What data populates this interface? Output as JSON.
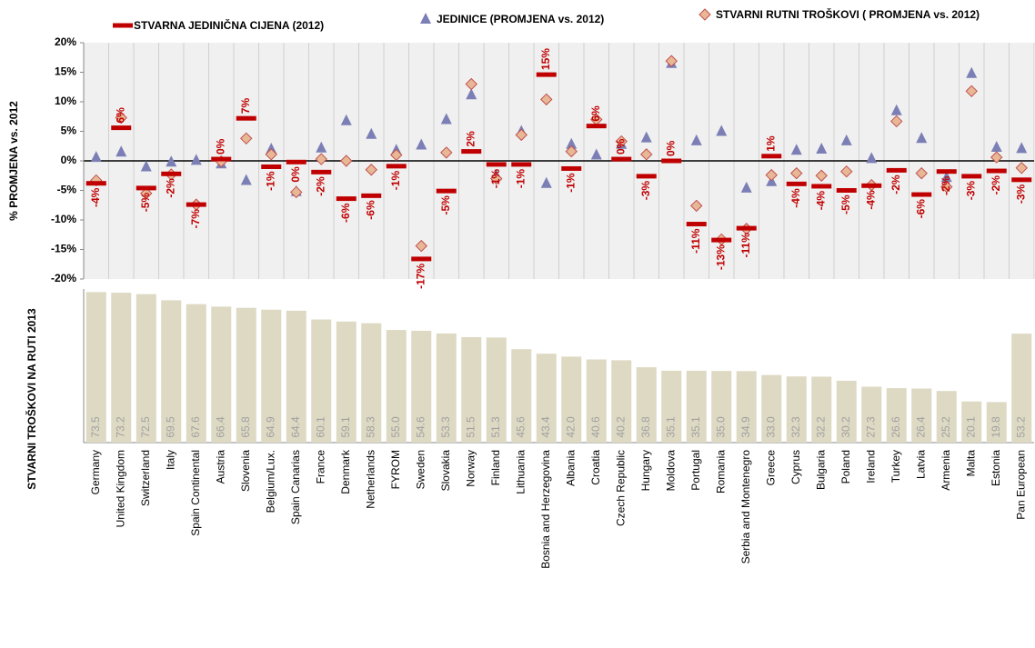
{
  "chart_data": [
    {
      "type": "scatter",
      "ylabel": "%  PROMJENA vs. 2012",
      "ylim": [
        -20,
        20
      ],
      "yticks": [
        {
          "value": -20,
          "label": "-20%"
        },
        {
          "value": -15,
          "label": "-15%"
        },
        {
          "value": -10,
          "label": "-10%"
        },
        {
          "value": -5,
          "label": "-5%"
        },
        {
          "value": 0,
          "label": "0%"
        },
        {
          "value": 5,
          "label": "5%"
        },
        {
          "value": 10,
          "label": "10%"
        },
        {
          "value": 15,
          "label": "15%"
        },
        {
          "value": 20,
          "label": "20%"
        }
      ],
      "series": [
        {
          "name": "STVARNA JEDINIČNA CIJENA (2012)",
          "marker": "dash",
          "color": "#c00000",
          "values": [
            -3.8,
            5.6,
            -4.6,
            -2.2,
            -7.4,
            0.3,
            7.2,
            -1.0,
            -0.2,
            -1.9,
            -6.4,
            -5.9,
            -0.9,
            -16.6,
            -5.1,
            1.6,
            -0.6,
            -0.6,
            14.6,
            -1.3,
            5.9,
            0.3,
            -2.6,
            0.0,
            -10.7,
            -13.4,
            -11.4,
            0.8,
            -3.9,
            -4.3,
            -5.0,
            -4.2,
            -1.6,
            -5.7,
            -1.8,
            -2.6,
            -1.7,
            -3.2
          ],
          "value_labels": [
            "-4%",
            "6%",
            "-5%",
            "-2%",
            "-7%",
            "0%",
            "7%",
            "-1%",
            "0%",
            "-2%",
            "-6%",
            "-6%",
            "-1%",
            "-17%",
            "-5%",
            "2%",
            "-1%",
            "-1%",
            "15%",
            "-1%",
            "6%",
            "0%",
            "-3%",
            "0%",
            "-11%",
            "-13%",
            "-11%",
            "1%",
            "-4%",
            "-4%",
            "-5%",
            "-4%",
            "-2%",
            "-6%",
            "-2%",
            "-3%",
            "-2%",
            "-3%"
          ]
        },
        {
          "name": "JEDINICE (PROMJENA vs. 2012)",
          "marker": "triangle",
          "color": "#7b7fb5",
          "values": [
            0.6,
            1.5,
            -1.0,
            -0.2,
            0.1,
            -0.5,
            -3.3,
            2.0,
            -5.2,
            2.2,
            6.8,
            4.5,
            1.8,
            2.7,
            7.0,
            11.2,
            -2.5,
            5.0,
            -3.8,
            2.8,
            1.0,
            2.8,
            3.9,
            16.5,
            3.4,
            5.0,
            -4.6,
            -3.5,
            1.8,
            2.0,
            3.4,
            0.4,
            8.5,
            3.8,
            -2.8,
            14.8,
            2.3,
            2.1
          ]
        },
        {
          "name": "STVARNI RUTNI TROŠKOVI ( PROMJENA vs. 2012)",
          "marker": "diamond",
          "color": "#e8b896",
          "values": [
            -3.3,
            7.3,
            -5.5,
            -2.3,
            -7.4,
            -0.1,
            3.8,
            1.1,
            -5.3,
            0.3,
            0.0,
            -1.5,
            1.0,
            -14.4,
            1.4,
            13.0,
            -3.0,
            4.4,
            10.4,
            1.6,
            7.0,
            3.3,
            1.1,
            16.9,
            -7.6,
            -13.3,
            -11.5,
            -2.4,
            -2.1,
            -2.5,
            -1.8,
            -4.1,
            6.7,
            -2.1,
            -4.4,
            11.8,
            0.6,
            -1.2
          ]
        }
      ]
    },
    {
      "type": "bar",
      "ylabel": "STVARNI TROŠKOVI NA RUTI 2013",
      "color": "#ddd9c3",
      "ylim": [
        0,
        75
      ],
      "categories": [
        "Germany",
        "United Kingdom",
        "Switzerland",
        "Italy",
        "Spain Continental",
        "Austria",
        "Slovenia",
        "Belgium/Lux.",
        "Spain Canarias",
        "France",
        "Denmark",
        "Netherlands",
        "FYROM",
        "Sweden",
        "Slovakia",
        "Norway",
        "Finland",
        "Lithuania",
        "Bosnia and Herzegovina",
        "Albania",
        "Croatia",
        "Czech Republic",
        "Hungary",
        "Moldova",
        "Portugal",
        "Romania",
        "Serbia and Montenegro",
        "Greece",
        "Cyprus",
        "Bulgaria",
        "Poland",
        "Ireland",
        "Turkey",
        "Latvia",
        "Armenia",
        "Malta",
        "Estonia",
        "Pan European"
      ],
      "values": [
        73.5,
        73.2,
        72.5,
        69.5,
        67.6,
        66.4,
        65.8,
        64.9,
        64.4,
        60.1,
        59.1,
        58.3,
        55.0,
        54.6,
        53.3,
        51.5,
        51.3,
        45.6,
        43.4,
        42.0,
        40.6,
        40.2,
        36.8,
        35.1,
        35.1,
        35.0,
        34.9,
        33.0,
        32.3,
        32.2,
        30.2,
        27.3,
        26.6,
        26.4,
        25.2,
        20.1,
        19.8,
        53.2
      ],
      "value_labels": [
        "73.5",
        "73.2",
        "72.5",
        "69.5",
        "67.6",
        "66.4",
        "65.8",
        "64.9",
        "64.4",
        "60.1",
        "59.1",
        "58.3",
        "55.0",
        "54.6",
        "53.3",
        "51.5",
        "51.3",
        "45.6",
        "43.4",
        "42.0",
        "40.6",
        "40.2",
        "36.8",
        "35.1",
        "35.1",
        "35.0",
        "34.9",
        "33.0",
        "32.3",
        "32.2",
        "30.2",
        "27.3",
        "26.6",
        "26.4",
        "25.2",
        "20.1",
        "19.8",
        "53.2"
      ]
    }
  ]
}
